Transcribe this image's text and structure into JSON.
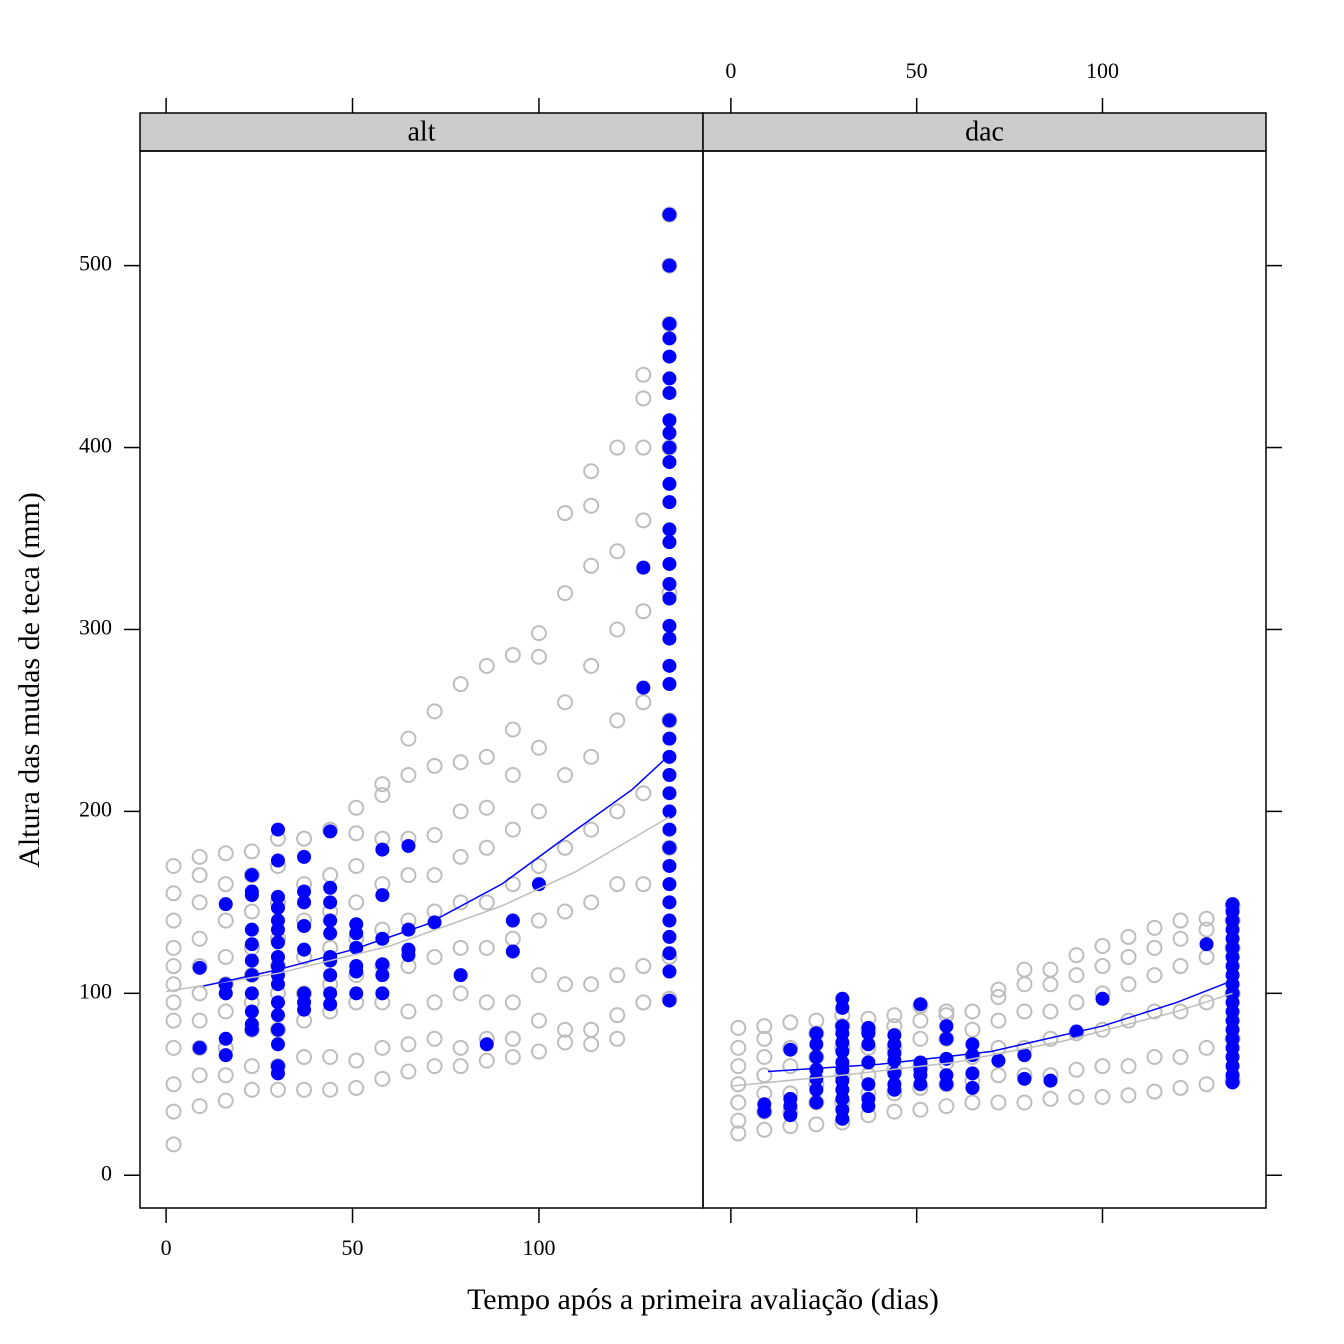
{
  "chart_data": [
    {
      "type": "scatter",
      "title": "alt",
      "xlabel": "Tempo após a primeira avaliação (dias)",
      "ylabel": "Altura das mudas de teca (mm)",
      "xlim": [
        -7,
        144
      ],
      "ylim": [
        -18,
        563
      ],
      "xticks": [
        0,
        50,
        100
      ],
      "yticks": [
        0,
        100,
        200,
        300,
        400,
        500
      ],
      "xtick_side": "bottom",
      "ytick_side": "left",
      "series": [
        {
          "style": "points",
          "filled": false,
          "color": "#bebebe",
          "x": [
            2,
            9,
            16,
            23,
            30,
            37,
            44,
            51,
            58,
            65,
            72,
            79,
            86,
            93,
            100,
            107,
            114,
            121,
            128,
            135
          ],
          "values": [
            [
              17,
              35,
              50,
              70,
              85,
              95,
              105,
              115,
              125,
              140,
              155,
              170
            ],
            [
              38,
              55,
              70,
              85,
              100,
              115,
              130,
              150,
              165,
              175
            ],
            [
              41,
              55,
              70,
              90,
              105,
              120,
              140,
              160,
              177
            ],
            [
              47,
              60,
              80,
              95,
              110,
              125,
              145,
              165,
              178
            ],
            [
              47,
              60,
              80,
              100,
              115,
              130,
              150,
              170,
              185
            ],
            [
              47,
              65,
              85,
              100,
              120,
              140,
              160,
              185
            ],
            [
              47,
              65,
              90,
              105,
              125,
              145,
              165,
              190
            ],
            [
              48,
              63,
              95,
              110,
              130,
              150,
              170,
              188,
              202
            ],
            [
              53,
              70,
              95,
              115,
              135,
              160,
              185,
              209,
              215
            ],
            [
              57,
              72,
              90,
              115,
              140,
              165,
              185,
              220,
              240
            ],
            [
              60,
              75,
              95,
              120,
              145,
              165,
              187,
              225,
              255
            ],
            [
              60,
              70,
              100,
              125,
              150,
              175,
              200,
              227,
              270
            ],
            [
              63,
              75,
              95,
              125,
              150,
              180,
              202,
              230,
              280
            ],
            [
              65,
              75,
              95,
              130,
              160,
              190,
              220,
              245,
              286
            ],
            [
              68,
              85,
              110,
              140,
              170,
              200,
              235,
              285,
              298
            ],
            [
              73,
              80,
              105,
              145,
              180,
              220,
              260,
              320,
              364
            ],
            [
              72,
              80,
              105,
              150,
              190,
              230,
              280,
              335,
              368,
              387
            ],
            [
              75,
              88,
              110,
              160,
              200,
              250,
              300,
              343,
              400
            ],
            [
              95,
              115,
              160,
              210,
              260,
              310,
              360,
              400,
              427,
              440
            ],
            [
              97,
              120,
              180,
              250,
              320,
              400,
              468,
              500,
              528
            ]
          ]
        },
        {
          "style": "points",
          "filled": true,
          "color": "#0000ff",
          "x": [
            9,
            16,
            23,
            30,
            37,
            44,
            51,
            58,
            65,
            72,
            79,
            86,
            93,
            100,
            128,
            135
          ],
          "values": [
            [
              114,
              70
            ],
            [
              149,
              105,
              100,
              75,
              66
            ],
            [
              165,
              156,
              154,
              135,
              127,
              118,
              110,
              100,
              90,
              83,
              80
            ],
            [
              190,
              173,
              153,
              147,
              140,
              135,
              128,
              120,
              115,
              110,
              105,
              95,
              88,
              80,
              72,
              60,
              56
            ],
            [
              175,
              156,
              150,
              137,
              124,
              100,
              95,
              91
            ],
            [
              189,
              158,
              150,
              140,
              133,
              120,
              118,
              110,
              100,
              94
            ],
            [
              138,
              133,
              125,
              115,
              112,
              100
            ],
            [
              179,
              154,
              130,
              116,
              110,
              100
            ],
            [
              181,
              135,
              124,
              121
            ],
            [
              139
            ],
            [
              110
            ],
            [
              72
            ],
            [
              140,
              123
            ],
            [
              160
            ],
            [
              334,
              268
            ],
            [
              528,
              500,
              468,
              460,
              450,
              438,
              430,
              415,
              408,
              400,
              392,
              380,
              370,
              355,
              348,
              336,
              325,
              317,
              302,
              295,
              280,
              270,
              250,
              240,
              230,
              220,
              210,
              200,
              190,
              180,
              170,
              160,
              150,
              140,
              131,
              122,
              112,
              96
            ]
          ]
        },
        {
          "style": "line",
          "color": "#bebebe",
          "x": [
            0,
            30,
            60,
            90,
            110,
            135
          ],
          "values": [
            101,
            111,
            126,
            148,
            167,
            197
          ]
        },
        {
          "style": "line",
          "color": "#0000ff",
          "x": [
            10,
            30,
            50,
            70,
            90,
            110,
            125,
            135
          ],
          "values": [
            104,
            113,
            124,
            138,
            160,
            190,
            212,
            231
          ]
        }
      ]
    },
    {
      "type": "scatter",
      "title": "dac",
      "xlim": [
        -7.5,
        144
      ],
      "ylim": [
        -18,
        563
      ],
      "xticks": [
        0,
        50,
        100
      ],
      "yticks": [
        0,
        100,
        200,
        300,
        400,
        500
      ],
      "xtick_side": "top",
      "ytick_side": "right",
      "series": [
        {
          "style": "points",
          "filled": false,
          "color": "#bebebe",
          "x": [
            2,
            9,
            16,
            23,
            30,
            37,
            44,
            51,
            58,
            65,
            72,
            79,
            86,
            93,
            100,
            107,
            114,
            121,
            128,
            135
          ],
          "values": [
            [
              23,
              30,
              40,
              50,
              60,
              70,
              81
            ],
            [
              25,
              35,
              45,
              55,
              65,
              75,
              82
            ],
            [
              27,
              35,
              45,
              60,
              70,
              84
            ],
            [
              28,
              40,
              50,
              65,
              78,
              85
            ],
            [
              29,
              40,
              55,
              70,
              82,
              88
            ],
            [
              33,
              45,
              55,
              70,
              80,
              86
            ],
            [
              35,
              45,
              58,
              70,
              82,
              88
            ],
            [
              36,
              48,
              60,
              75,
              85,
              93
            ],
            [
              38,
              50,
              62,
              75,
              88,
              90
            ],
            [
              40,
              52,
              65,
              80,
              90
            ],
            [
              40,
              55,
              70,
              85,
              98,
              102
            ],
            [
              40,
              55,
              70,
              90,
              105,
              113
            ],
            [
              42,
              55,
              75,
              90,
              105,
              113
            ],
            [
              43,
              58,
              78,
              95,
              110,
              121
            ],
            [
              43,
              60,
              80,
              100,
              115,
              126
            ],
            [
              44,
              60,
              85,
              105,
              120,
              131
            ],
            [
              46,
              65,
              90,
              110,
              125,
              136
            ],
            [
              48,
              65,
              90,
              115,
              130,
              140
            ],
            [
              50,
              70,
              95,
              120,
              135,
              141
            ],
            [
              52,
              75,
              100,
              125,
              140,
              148
            ]
          ]
        },
        {
          "style": "points",
          "filled": true,
          "color": "#0000ff",
          "x": [
            9,
            16,
            23,
            30,
            37,
            44,
            51,
            58,
            65,
            72,
            79,
            86,
            93,
            100,
            128,
            135
          ],
          "values": [
            [
              39,
              35
            ],
            [
              69,
              42,
              38,
              33
            ],
            [
              78,
              72,
              65,
              58,
              53,
              47,
              40
            ],
            [
              97,
              92,
              82,
              78,
              73,
              68,
              62,
              58,
              52,
              47,
              42,
              36,
              31
            ],
            [
              81,
              78,
              72,
              62,
              50,
              42,
              38
            ],
            [
              77,
              72,
              67,
              63,
              56,
              50,
              47
            ],
            [
              94,
              62,
              58,
              55,
              50
            ],
            [
              82,
              75,
              64,
              55,
              50
            ],
            [
              72,
              66,
              56,
              48
            ],
            [
              63
            ],
            [
              66,
              53
            ],
            [
              52
            ],
            [
              79
            ],
            [
              97
            ],
            [
              127
            ],
            [
              149,
              145,
              140,
              135,
              130,
              125,
              120,
              115,
              110,
              105,
              100,
              95,
              90,
              85,
              80,
              75,
              70,
              65,
              60,
              55,
              51
            ]
          ]
        },
        {
          "style": "line",
          "color": "#bebebe",
          "x": [
            0,
            30,
            60,
            90,
            120,
            135
          ],
          "values": [
            49,
            55,
            62,
            74,
            90,
            100
          ]
        },
        {
          "style": "line",
          "color": "#0000ff",
          "x": [
            10,
            40,
            70,
            100,
            120,
            135
          ],
          "values": [
            57,
            61,
            68,
            82,
            95,
            107
          ]
        }
      ]
    }
  ]
}
